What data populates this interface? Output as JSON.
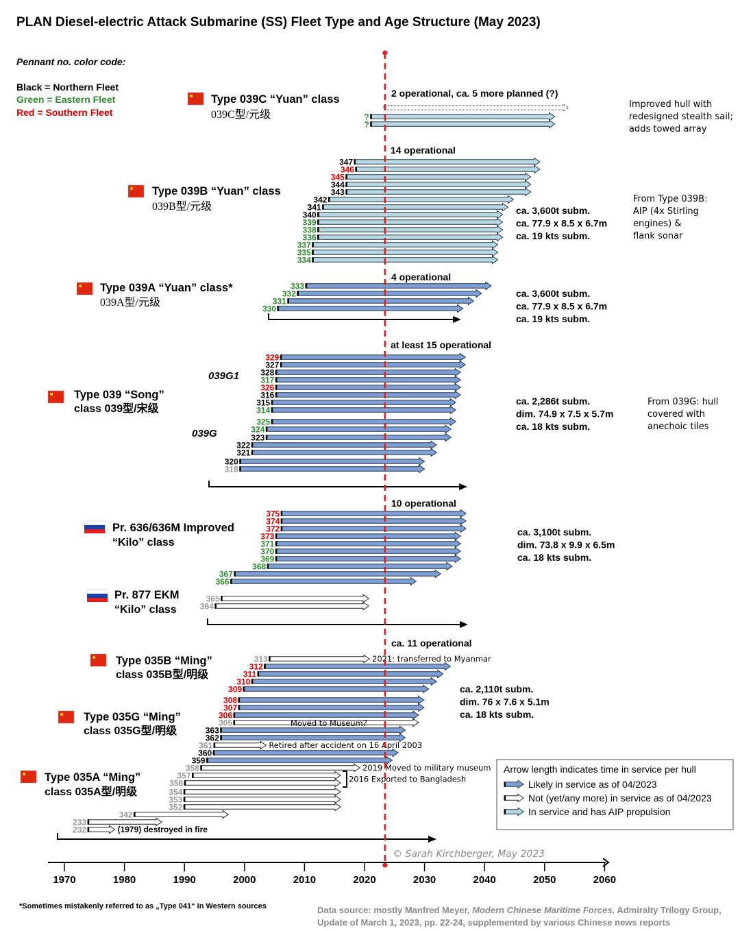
{
  "title": "PLAN Diesel-electric Attack Submarine (SS) Fleet Type and Age Structure (May 2023)",
  "color_code": {
    "heading": "Pennant no. color code:",
    "northern": "Black = Northern Fleet",
    "eastern": "Green = Eastern Fleet",
    "southern": "Red = Southern Fleet"
  },
  "colors": {
    "northern": "#000000",
    "eastern": "#2e8b2e",
    "southern": "#e00000",
    "retired": "#9a9a9a",
    "active_fill": "#7f9fd3",
    "aip_fill": "#b9d9e2",
    "inactive_fill": "#ffffff",
    "today_line": "#e02020"
  },
  "chart_data": {
    "type": "timeline-arrows",
    "x_axis": {
      "min": 1970,
      "max": 2060,
      "ticks": [
        1970,
        1980,
        1990,
        2000,
        2010,
        2020,
        2030,
        2040,
        2050,
        2060
      ]
    },
    "today": 2023.4,
    "sections": [
      {
        "id": "039C",
        "flag": "china",
        "title": "Type 039C “Yuan” class",
        "subtitle": "039C型/元级",
        "status_text": "2 operational, ca. 5 more planned (?)",
        "specs": [],
        "notes": [
          "Improved hull with",
          "redesigned stealth sail;",
          "adds towed array"
        ],
        "hulls": [
          {
            "pennant": "",
            "fleet": "none",
            "start": 2023.2,
            "end": 2054,
            "status": "planned"
          },
          {
            "pennant": "?",
            "fleet": "eastern",
            "start": 2021,
            "end": 2051.7,
            "status": "aip"
          },
          {
            "pennant": "?",
            "fleet": "eastern",
            "start": 2021,
            "end": 2051.7,
            "status": "aip"
          }
        ]
      },
      {
        "id": "039B",
        "flag": "china",
        "title": "Type 039B “Yuan” class",
        "subtitle": "039B型/元级",
        "status_text": "14 operational",
        "specs": [
          "ca. 3,600t subm.",
          "ca. 77.9 x 8.5 x 6.7m",
          "ca. 19 kts subm."
        ],
        "notes": [
          "From Type 039B:",
          "AIP (4x Stirling",
          "engines) &",
          "flank sonar"
        ],
        "hulls": [
          {
            "pennant": "347",
            "fleet": "northern",
            "start": 2018.3,
            "end": 2049.2,
            "status": "aip"
          },
          {
            "pennant": "346",
            "fleet": "southern",
            "start": 2018.5,
            "end": 2049.2,
            "status": "aip"
          },
          {
            "pennant": "345",
            "fleet": "southern",
            "start": 2016.9,
            "end": 2047.7,
            "status": "aip"
          },
          {
            "pennant": "344",
            "fleet": "northern",
            "start": 2016.9,
            "end": 2047.7,
            "status": "aip"
          },
          {
            "pennant": "343",
            "fleet": "northern",
            "start": 2016.9,
            "end": 2047.7,
            "status": "aip"
          },
          {
            "pennant": "342",
            "fleet": "northern",
            "start": 2014,
            "end": 2044.8,
            "status": "aip"
          },
          {
            "pennant": "341",
            "fleet": "northern",
            "start": 2013,
            "end": 2043.9,
            "status": "aip"
          },
          {
            "pennant": "340",
            "fleet": "northern",
            "start": 2012.2,
            "end": 2043,
            "status": "aip"
          },
          {
            "pennant": "339",
            "fleet": "eastern",
            "start": 2012.2,
            "end": 2043,
            "status": "aip"
          },
          {
            "pennant": "338",
            "fleet": "eastern",
            "start": 2012.2,
            "end": 2043,
            "status": "aip"
          },
          {
            "pennant": "336",
            "fleet": "eastern",
            "start": 2012.2,
            "end": 2043,
            "status": "aip"
          },
          {
            "pennant": "337",
            "fleet": "eastern",
            "start": 2011.3,
            "end": 2042.2,
            "status": "aip"
          },
          {
            "pennant": "335",
            "fleet": "eastern",
            "start": 2011.3,
            "end": 2042.2,
            "status": "aip"
          },
          {
            "pennant": "334",
            "fleet": "eastern",
            "start": 2011.3,
            "end": 2042.2,
            "status": "aip"
          }
        ]
      },
      {
        "id": "039A",
        "flag": "china",
        "title": "Type 039A “Yuan” class*",
        "subtitle": "039A型/元级",
        "status_text": "4 operational",
        "specs": [
          "ca. 3,600t subm.",
          "ca. 77.9 x 8.5 x 6.7m",
          "ca. 19 kts subm."
        ],
        "notes": [],
        "hulls": [
          {
            "pennant": "333",
            "fleet": "eastern",
            "start": 2010.2,
            "end": 2041.1,
            "status": "active"
          },
          {
            "pennant": "332",
            "fleet": "eastern",
            "start": 2008.8,
            "end": 2039.5,
            "status": "active"
          },
          {
            "pennant": "331",
            "fleet": "eastern",
            "start": 2007.2,
            "end": 2038.2,
            "status": "active"
          },
          {
            "pennant": "330",
            "fleet": "eastern",
            "start": 2005.5,
            "end": 2036.4,
            "status": "active"
          }
        ]
      },
      {
        "id": "039",
        "flag": "china",
        "title": "Type 039 “Song”",
        "subtitle": "class  039型/宋级",
        "status_text": "at least 15 operational",
        "specs": [
          "ca. 2,286t subm.",
          "dim. 74.9 x 7.5 x 5.7m",
          "ca. 18 kts subm."
        ],
        "notes": [
          "From 039G: hull",
          "covered with",
          "anechoic tiles"
        ],
        "subgroups": [
          "039G1",
          "039G"
        ],
        "hulls": [
          {
            "pennant": "329",
            "fleet": "southern",
            "start": 2006,
            "end": 2036.8,
            "status": "active"
          },
          {
            "pennant": "327",
            "fleet": "northern",
            "start": 2006,
            "end": 2036.8,
            "status": "active"
          },
          {
            "pennant": "328",
            "fleet": "northern",
            "start": 2005.2,
            "end": 2036,
            "status": "active"
          },
          {
            "pennant": "317",
            "fleet": "eastern",
            "start": 2005.2,
            "end": 2036,
            "status": "active"
          },
          {
            "pennant": "326",
            "fleet": "southern",
            "start": 2005.2,
            "end": 2036,
            "status": "active"
          },
          {
            "pennant": "316",
            "fleet": "northern",
            "start": 2005.2,
            "end": 2036,
            "status": "active"
          },
          {
            "pennant": "315",
            "fleet": "northern",
            "start": 2004.5,
            "end": 2035.2,
            "status": "active"
          },
          {
            "pennant": "314",
            "fleet": "eastern",
            "start": 2004.5,
            "end": 2035.2,
            "status": "active"
          },
          {
            "pennant": "325",
            "fleet": "eastern",
            "start": 2004.5,
            "end": 2035.2,
            "status": "active"
          },
          {
            "pennant": "324",
            "fleet": "eastern",
            "start": 2003.6,
            "end": 2034.4,
            "status": "active"
          },
          {
            "pennant": "323",
            "fleet": "northern",
            "start": 2003.6,
            "end": 2034.4,
            "status": "active"
          },
          {
            "pennant": "322",
            "fleet": "northern",
            "start": 2001.2,
            "end": 2032,
            "status": "active"
          },
          {
            "pennant": "321",
            "fleet": "northern",
            "start": 2001.2,
            "end": 2032,
            "status": "active"
          },
          {
            "pennant": "320",
            "fleet": "northern",
            "start": 1999.2,
            "end": 2030,
            "status": "active"
          },
          {
            "pennant": "318",
            "fleet": "retired",
            "start": 1999.2,
            "end": 2030,
            "status": "active"
          }
        ]
      },
      {
        "id": "636",
        "flag": "russia",
        "title": "Pr. 636/636M Improved",
        "subtitle": "“Kilo” class",
        "status_text": "10 operational",
        "specs": [
          "ca. 3,100t subm.",
          "dim. 73.8 x 9.9 x 6.5m",
          "ca. 18 kts subm."
        ],
        "notes": [],
        "hulls": [
          {
            "pennant": "375",
            "fleet": "southern",
            "start": 2006.1,
            "end": 2036.9,
            "status": "active"
          },
          {
            "pennant": "374",
            "fleet": "southern",
            "start": 2006.1,
            "end": 2036.9,
            "status": "active"
          },
          {
            "pennant": "372",
            "fleet": "southern",
            "start": 2006.1,
            "end": 2036.9,
            "status": "active"
          },
          {
            "pennant": "373",
            "fleet": "southern",
            "start": 2005.2,
            "end": 2036,
            "status": "active"
          },
          {
            "pennant": "371",
            "fleet": "eastern",
            "start": 2005.2,
            "end": 2036,
            "status": "active"
          },
          {
            "pennant": "370",
            "fleet": "eastern",
            "start": 2005.2,
            "end": 2036,
            "status": "active"
          },
          {
            "pennant": "369",
            "fleet": "eastern",
            "start": 2005.2,
            "end": 2036,
            "status": "active"
          },
          {
            "pennant": "368",
            "fleet": "eastern",
            "start": 2003.8,
            "end": 2034.6,
            "status": "active"
          },
          {
            "pennant": "367",
            "fleet": "eastern",
            "start": 1998.3,
            "end": 2032.7,
            "status": "active"
          },
          {
            "pennant": "366",
            "fleet": "eastern",
            "start": 1997.7,
            "end": 2028.6,
            "status": "active"
          }
        ]
      },
      {
        "id": "877",
        "flag": "russia",
        "title": "Pr. 877 EKM",
        "subtitle": "“Kilo” class",
        "status_text": "",
        "specs": [],
        "notes": [],
        "hulls": [
          {
            "pennant": "365",
            "fleet": "retired",
            "start": 1996.1,
            "end": 2020.7,
            "status": "inactive"
          },
          {
            "pennant": "364",
            "fleet": "retired",
            "start": 1995.1,
            "end": 2020.7,
            "status": "inactive"
          }
        ]
      },
      {
        "id": "035B",
        "flag": "china",
        "title": "Type 035B “Ming”",
        "subtitle": "class  035B型/明级",
        "status_text": "ca. 11 operational",
        "specs": [
          "ca. 2,110t subm.",
          "dim. 76 x 7.6 x 5.1m",
          "ca. 18 kts subm."
        ],
        "notes": [],
        "hulls": [
          {
            "pennant": "313",
            "fleet": "retired",
            "start": 2004.1,
            "end": 2020.8,
            "status": "inactive",
            "note": "2021: transferred to Myanmar"
          },
          {
            "pennant": "312",
            "fleet": "southern",
            "start": 2003.3,
            "end": 2034.3,
            "status": "active"
          },
          {
            "pennant": "311",
            "fleet": "southern",
            "start": 2002.2,
            "end": 2033.1,
            "status": "active"
          },
          {
            "pennant": "310",
            "fleet": "southern",
            "start": 2001.2,
            "end": 2032,
            "status": "active"
          },
          {
            "pennant": "309",
            "fleet": "southern",
            "start": 1999.8,
            "end": 2030.7,
            "status": "active"
          }
        ]
      },
      {
        "id": "035G",
        "flag": "china",
        "title": "Type 035G “Ming”",
        "subtitle": "class  035G型/明级",
        "status_text": "",
        "specs": [],
        "notes": [],
        "hulls": [
          {
            "pennant": "308",
            "fleet": "southern",
            "start": 1999,
            "end": 2029.9,
            "status": "active"
          },
          {
            "pennant": "307",
            "fleet": "southern",
            "start": 1999,
            "end": 2029.9,
            "status": "active"
          },
          {
            "pennant": "306",
            "fleet": "southern",
            "start": 1998.2,
            "end": 2029,
            "status": "active"
          },
          {
            "pennant": "305",
            "fleet": "retired",
            "start": 1998.2,
            "end": 2029,
            "status": "inactive",
            "note": "Moved to Museum?"
          },
          {
            "pennant": "363",
            "fleet": "northern",
            "start": 1996,
            "end": 2026.8,
            "status": "active"
          },
          {
            "pennant": "362",
            "fleet": "northern",
            "start": 1996,
            "end": 2026.8,
            "status": "active"
          },
          {
            "pennant": "361",
            "fleet": "retired",
            "start": 1994.9,
            "end": 2003.6,
            "status": "inactive",
            "note": "Retired after accident on 16 April 2003"
          },
          {
            "pennant": "360",
            "fleet": "northern",
            "start": 1994.8,
            "end": 2025.6,
            "status": "active"
          },
          {
            "pennant": "359",
            "fleet": "northern",
            "start": 1993.7,
            "end": 2024.6,
            "status": "active"
          },
          {
            "pennant": "358",
            "fleet": "retired",
            "start": 1992.7,
            "end": 2019.2,
            "status": "inactive",
            "note": "2019 Moved to military museum"
          },
          {
            "pennant": "357",
            "fleet": "retired",
            "start": 1991.3,
            "end": 2016,
            "status": "inactive"
          },
          {
            "pennant": "356",
            "fleet": "retired",
            "start": 1990,
            "end": 2016,
            "status": "inactive"
          }
        ],
        "bracket_note": "2016 Exported to Bangladesh"
      },
      {
        "id": "035A",
        "flag": "china",
        "title": "Type 035A “Ming”",
        "subtitle": "class  035A型/明级",
        "status_text": "",
        "specs": [],
        "notes": [],
        "hulls": [
          {
            "pennant": "354",
            "fleet": "retired",
            "start": 1989.9,
            "end": 2016,
            "status": "inactive"
          },
          {
            "pennant": "353",
            "fleet": "retired",
            "start": 1989.9,
            "end": 2016,
            "status": "inactive"
          },
          {
            "pennant": "352",
            "fleet": "retired",
            "start": 1989.9,
            "end": 2016,
            "status": "inactive"
          },
          {
            "pennant": "342",
            "fleet": "retired",
            "start": 1981.6,
            "end": 1997.3,
            "status": "inactive"
          },
          {
            "pennant": "233",
            "fleet": "retired",
            "start": 1973.9,
            "end": 1986.2,
            "status": "inactive"
          },
          {
            "pennant": "232",
            "fleet": "retired",
            "start": 1973.9,
            "end": 1978.4,
            "status": "inactive",
            "note": "(1979) destroyed in fire"
          }
        ]
      }
    ]
  },
  "legend": {
    "title": "Arrow length indicates time in service per hull",
    "items": [
      {
        "status": "active",
        "label": "Likely in service as of 04/2023"
      },
      {
        "status": "inactive",
        "label": "Not (yet/any more) in service as of 04/2023"
      },
      {
        "status": "aip",
        "label": "In service and has AIP propulsion"
      }
    ]
  },
  "copyright": "© Sarah Kirchberger, May 2023",
  "footnote": "*Sometimes mistakenly referred to as „Type 041“ in Western sources",
  "source": {
    "prefix": "Data source: mostly Manfred Meyer, ",
    "book": "Modern Chinese Maritime Forces,",
    "suffix": " Admiralty Trilogy Group,",
    "line2": "Update of March 1, 2023, pp. 22-24, supplemented by various Chinese news reports"
  }
}
